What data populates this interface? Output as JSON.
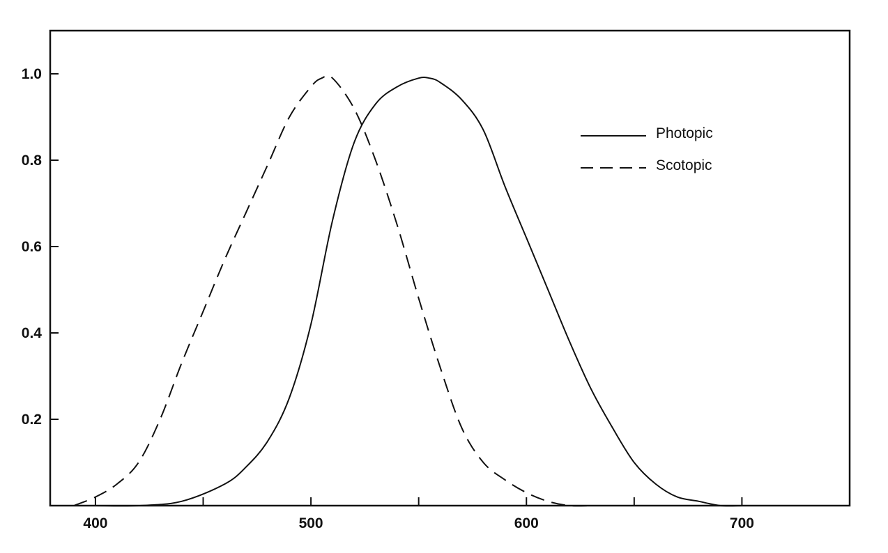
{
  "chart_data": {
    "type": "line",
    "title": "",
    "xlabel": "",
    "ylabel": "",
    "xlim": [
      379,
      750
    ],
    "ylim": [
      0,
      1.1
    ],
    "xticks": [
      400,
      450,
      500,
      550,
      600,
      650,
      700
    ],
    "xtick_labels": [
      "400",
      "500",
      "600",
      "700"
    ],
    "xtick_label_values": [
      400,
      500,
      600,
      700
    ],
    "yticks": [
      0.2,
      0.4,
      0.6,
      0.8,
      1.0
    ],
    "ytick_labels": [
      "0.2",
      "0.4",
      "0.6",
      "0.8",
      "1.0"
    ],
    "grid": false,
    "legend": {
      "position": "top-right"
    },
    "series": [
      {
        "name": "Photopic",
        "style": "solid",
        "x": [
          380,
          400,
          420,
          440,
          460,
          470,
          480,
          490,
          500,
          510,
          520,
          530,
          540,
          550,
          555,
          560,
          570,
          580,
          590,
          600,
          610,
          620,
          630,
          640,
          650,
          660,
          670,
          680,
          690,
          700
        ],
        "y": [
          0.0,
          0.0,
          0.0,
          0.01,
          0.05,
          0.09,
          0.15,
          0.25,
          0.42,
          0.66,
          0.84,
          0.93,
          0.97,
          0.99,
          0.99,
          0.98,
          0.94,
          0.87,
          0.74,
          0.62,
          0.5,
          0.38,
          0.27,
          0.18,
          0.1,
          0.05,
          0.02,
          0.01,
          0.0,
          0.0
        ]
      },
      {
        "name": "Scotopic",
        "style": "dashed",
        "x": [
          390,
          400,
          410,
          420,
          430,
          440,
          450,
          460,
          470,
          480,
          490,
          500,
          505,
          510,
          520,
          530,
          540,
          550,
          560,
          570,
          580,
          590,
          600,
          610,
          620,
          630
        ],
        "y": [
          0.0,
          0.02,
          0.05,
          0.1,
          0.2,
          0.33,
          0.45,
          0.57,
          0.68,
          0.79,
          0.9,
          0.97,
          0.99,
          0.99,
          0.92,
          0.8,
          0.65,
          0.48,
          0.32,
          0.18,
          0.1,
          0.06,
          0.03,
          0.01,
          0.0,
          0.0
        ]
      }
    ]
  }
}
